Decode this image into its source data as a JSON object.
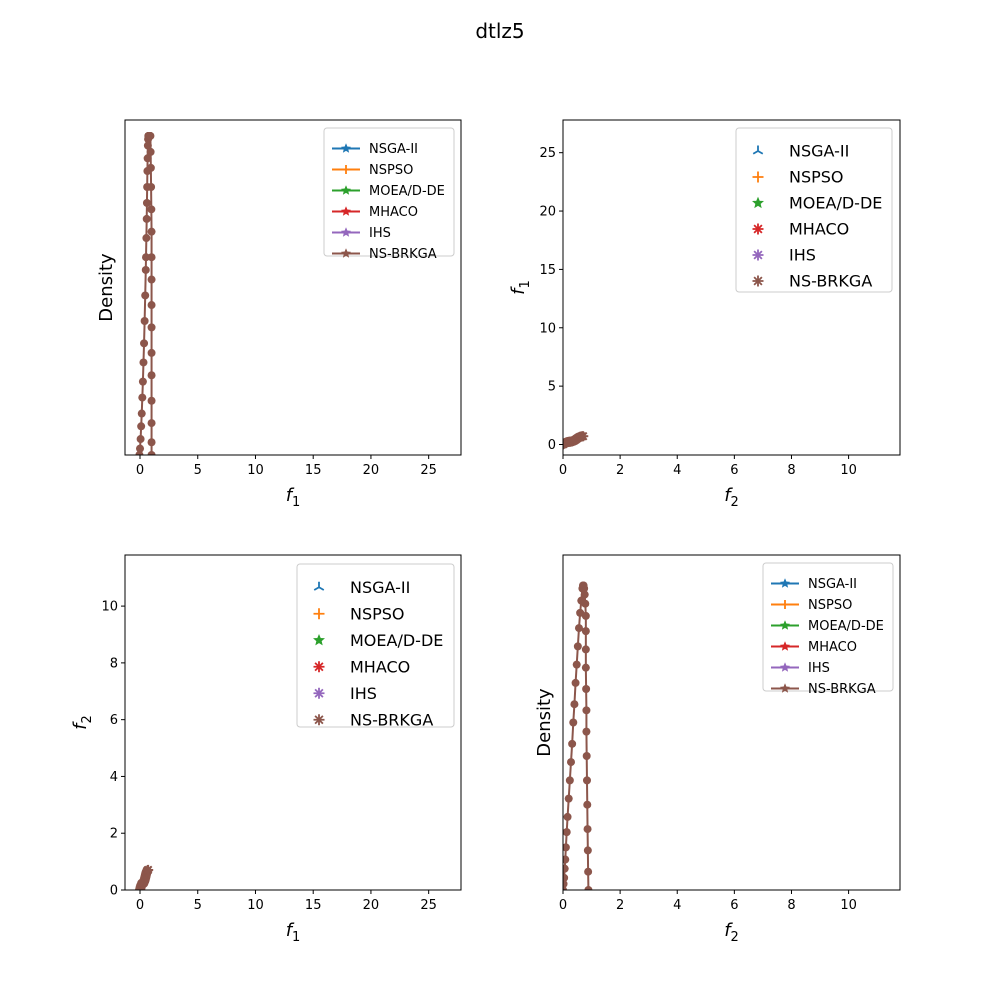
{
  "figure": {
    "suptitle": "dtlz5"
  },
  "chart_data": [
    {
      "id": "p1",
      "type": "line",
      "title": "",
      "xlabel": {
        "base": "f",
        "sub": "1"
      },
      "ylabel_text": "Density",
      "xlim": [
        -1.3,
        27.8
      ],
      "ylim": [
        0,
        1.05
      ],
      "xticks": [
        0,
        5,
        10,
        15,
        20,
        25
      ],
      "yticks": [],
      "grid": false,
      "legend": "top-right",
      "series": [
        {
          "name": "NSGA-II",
          "color": "#1f77b4",
          "marker": "star"
        },
        {
          "name": "NSPSO",
          "color": "#ff7f0e",
          "marker": "plus"
        },
        {
          "name": "MOEA/D-DE",
          "color": "#2ca02c",
          "marker": "star"
        },
        {
          "name": "MHACO",
          "color": "#d62728",
          "marker": "star"
        },
        {
          "name": "IHS",
          "color": "#9467bd",
          "marker": "star"
        },
        {
          "name": "NS-BRKGA",
          "color": "#8c564b",
          "marker": "star"
        }
      ],
      "density_curve": {
        "x": [
          -0.05,
          0.0,
          0.05,
          0.1,
          0.15,
          0.2,
          0.25,
          0.3,
          0.35,
          0.4,
          0.45,
          0.5,
          0.52,
          0.55,
          0.58,
          0.6,
          0.62,
          0.64,
          0.66,
          0.68,
          0.7,
          0.72,
          0.74,
          0.76,
          0.78,
          0.8,
          0.82,
          0.84,
          0.86,
          0.88,
          0.9,
          0.92,
          0.94,
          0.96,
          0.98,
          1.0,
          1.0,
          1.0,
          1.0,
          1.0,
          1.0,
          1.0,
          1.0,
          1.0,
          1.0,
          1.0
        ],
        "y": [
          0.0,
          0.02,
          0.05,
          0.09,
          0.13,
          0.18,
          0.23,
          0.29,
          0.35,
          0.42,
          0.5,
          0.58,
          0.62,
          0.68,
          0.74,
          0.79,
          0.84,
          0.89,
          0.93,
          0.97,
          0.99,
          1.0,
          1.0,
          1.0,
          1.0,
          1.0,
          1.0,
          1.0,
          1.0,
          1.0,
          1.0,
          0.95,
          0.9,
          0.84,
          0.77,
          0.7,
          0.62,
          0.55,
          0.47,
          0.4,
          0.32,
          0.25,
          0.17,
          0.1,
          0.04,
          0.0
        ]
      }
    },
    {
      "id": "p2",
      "type": "scatter",
      "title": "",
      "xlabel": {
        "base": "f",
        "sub": "2"
      },
      "ylabel": {
        "base": "f",
        "sub": "1"
      },
      "xlim": [
        0,
        11.8
      ],
      "ylim": [
        -0.9,
        27.8
      ],
      "xticks": [
        0,
        2,
        4,
        6,
        8,
        10
      ],
      "yticks": [
        0,
        5,
        10,
        15,
        20,
        25
      ],
      "grid": false,
      "legend": "top-right",
      "series": [
        {
          "name": "NSGA-II",
          "color": "#1f77b4",
          "marker": "tri"
        },
        {
          "name": "NSPSO",
          "color": "#ff7f0e",
          "marker": "plus"
        },
        {
          "name": "MOEA/D-DE",
          "color": "#2ca02c",
          "marker": "star"
        },
        {
          "name": "MHACO",
          "color": "#d62728",
          "marker": "asterisk"
        },
        {
          "name": "IHS",
          "color": "#9467bd",
          "marker": "asterisk"
        },
        {
          "name": "NS-BRKGA",
          "color": "#8c564b",
          "marker": "asterisk"
        }
      ],
      "front": {
        "x_max": 0.71,
        "y_max": 0.71,
        "points": 30
      }
    },
    {
      "id": "p3",
      "type": "scatter",
      "title": "",
      "xlabel": {
        "base": "f",
        "sub": "1"
      },
      "ylabel": {
        "base": "f",
        "sub": "2"
      },
      "xlim": [
        -1.3,
        27.8
      ],
      "ylim": [
        0,
        11.8
      ],
      "xticks": [
        0,
        5,
        10,
        15,
        20,
        25
      ],
      "yticks": [
        0,
        2,
        4,
        6,
        8,
        10
      ],
      "grid": false,
      "legend": "top-right",
      "series": [
        {
          "name": "NSGA-II",
          "color": "#1f77b4",
          "marker": "tri"
        },
        {
          "name": "NSPSO",
          "color": "#ff7f0e",
          "marker": "plus"
        },
        {
          "name": "MOEA/D-DE",
          "color": "#2ca02c",
          "marker": "star"
        },
        {
          "name": "MHACO",
          "color": "#d62728",
          "marker": "asterisk"
        },
        {
          "name": "IHS",
          "color": "#9467bd",
          "marker": "asterisk"
        },
        {
          "name": "NS-BRKGA",
          "color": "#8c564b",
          "marker": "asterisk"
        }
      ],
      "front": {
        "x_max": 0.71,
        "y_max": 0.71,
        "points": 30
      }
    },
    {
      "id": "p4",
      "type": "line",
      "title": "",
      "xlabel": {
        "base": "f",
        "sub": "2"
      },
      "ylabel_text": "Density",
      "xlim": [
        0,
        11.8
      ],
      "ylim": [
        0,
        1.1
      ],
      "xticks": [
        0,
        2,
        4,
        6,
        8,
        10
      ],
      "yticks": [],
      "grid": false,
      "legend": "top-right",
      "series": [
        {
          "name": "NSGA-II",
          "color": "#1f77b4",
          "marker": "star"
        },
        {
          "name": "NSPSO",
          "color": "#ff7f0e",
          "marker": "plus"
        },
        {
          "name": "MOEA/D-DE",
          "color": "#2ca02c",
          "marker": "star"
        },
        {
          "name": "MHACO",
          "color": "#d62728",
          "marker": "star"
        },
        {
          "name": "IHS",
          "color": "#9467bd",
          "marker": "star"
        },
        {
          "name": "NS-BRKGA",
          "color": "#8c564b",
          "marker": "star"
        }
      ],
      "density_curve": {
        "x": [
          0.0,
          0.02,
          0.04,
          0.06,
          0.08,
          0.1,
          0.13,
          0.16,
          0.2,
          0.24,
          0.28,
          0.32,
          0.36,
          0.4,
          0.44,
          0.48,
          0.52,
          0.56,
          0.6,
          0.64,
          0.68,
          0.7,
          0.72,
          0.74,
          0.76,
          0.78,
          0.8,
          0.8,
          0.8,
          0.8,
          0.81,
          0.82,
          0.82,
          0.83,
          0.84,
          0.85,
          0.86,
          0.87,
          0.88,
          0.89
        ],
        "y": [
          0.0,
          0.02,
          0.04,
          0.07,
          0.1,
          0.14,
          0.19,
          0.24,
          0.3,
          0.36,
          0.42,
          0.48,
          0.55,
          0.61,
          0.68,
          0.74,
          0.8,
          0.86,
          0.91,
          0.95,
          0.99,
          1.0,
          1.0,
          0.99,
          0.97,
          0.94,
          0.9,
          0.85,
          0.79,
          0.73,
          0.66,
          0.59,
          0.52,
          0.44,
          0.36,
          0.28,
          0.2,
          0.13,
          0.06,
          0.0
        ]
      }
    }
  ]
}
